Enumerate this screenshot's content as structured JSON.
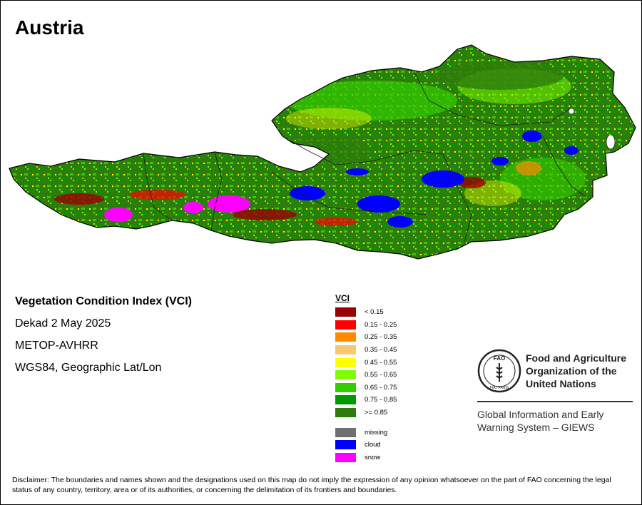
{
  "map": {
    "title": "Austria",
    "info": {
      "heading": "Vegetation Condition Index (VCI)",
      "period": "Dekad 2 May 2025",
      "sensor": "METOP-AVHRR",
      "projection": "WGS84, Geographic Lat/Lon"
    },
    "legend": {
      "title": "VCI",
      "classes": [
        {
          "label": "< 0.15",
          "color": "#990000"
        },
        {
          "label": "0.15 - 0.25",
          "color": "#ff0000"
        },
        {
          "label": "0.25 - 0.35",
          "color": "#ff8c00"
        },
        {
          "label": "0.35 - 0.45",
          "color": "#f8c870"
        },
        {
          "label": "0.45 - 0.55",
          "color": "#ffff00"
        },
        {
          "label": "0.55 - 0.65",
          "color": "#80ff00"
        },
        {
          "label": "0.65 - 0.75",
          "color": "#33cc00"
        },
        {
          "label": "0.75 - 0.85",
          "color": "#009900"
        },
        {
          "label": ">= 0.85",
          "color": "#2e7d0c"
        }
      ],
      "special": [
        {
          "label": "missing",
          "color": "#707070"
        },
        {
          "label": "cloud",
          "color": "#0000ff"
        },
        {
          "label": "snow",
          "color": "#ff00ff"
        }
      ]
    },
    "organization": {
      "name": "Food and Agriculture\nOrganization of the\nUnited Nations",
      "emblem_text": "FAO",
      "emblem_motto": "FIAT PANIS",
      "system": "Global Information and Early\nWarning System – GIEWS"
    },
    "disclaimer": "Disclaimer: The boundaries and names shown and the designations used on this map do not imply the expression of any opinion whatsoever on the part of FAO concerning the legal status of any country, territory, area or of its authorities, or concerning the delimitation of its frontiers and boundaries."
  }
}
